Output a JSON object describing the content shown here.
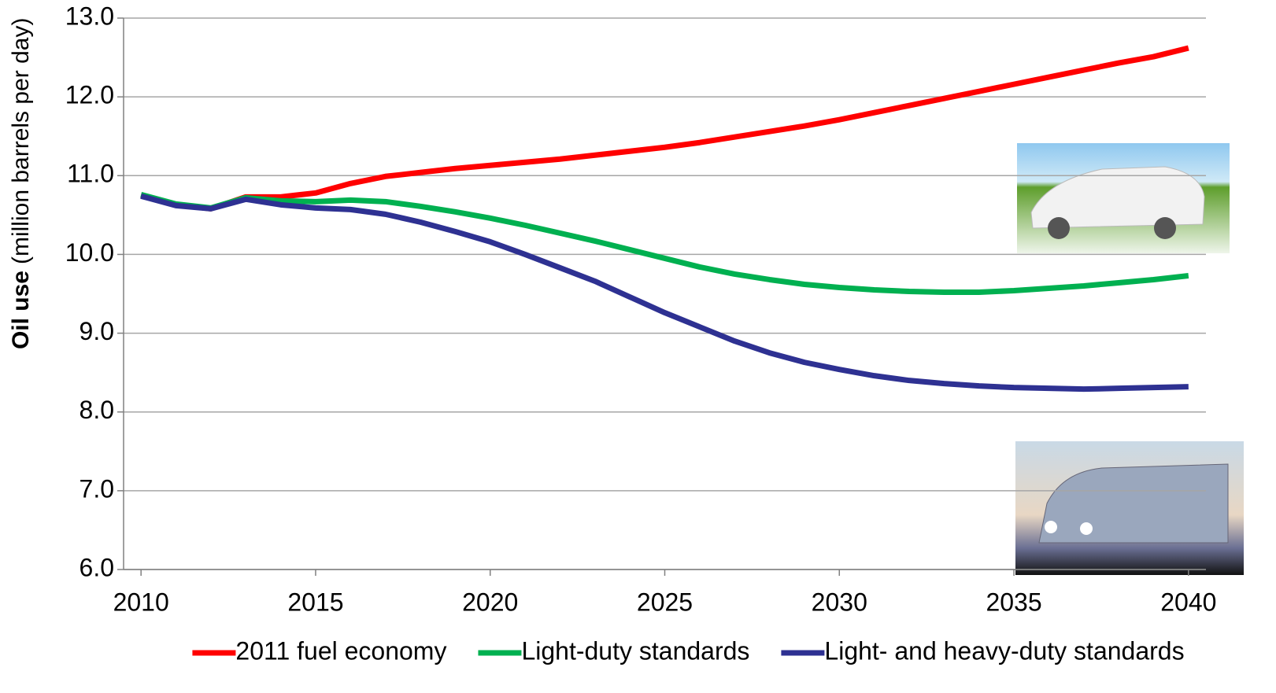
{
  "chart_data": {
    "type": "line",
    "y_label": {
      "bold": "Oil use",
      "rest": "(million barrels per day)"
    },
    "x": [
      2010,
      2011,
      2012,
      2013,
      2014,
      2015,
      2016,
      2017,
      2018,
      2019,
      2020,
      2021,
      2022,
      2023,
      2024,
      2025,
      2026,
      2027,
      2028,
      2029,
      2030,
      2031,
      2032,
      2033,
      2034,
      2035,
      2036,
      2037,
      2038,
      2039,
      2040
    ],
    "series": [
      {
        "name": "2011 fuel economy",
        "color": "#ff0000",
        "values": [
          10.75,
          10.63,
          10.58,
          10.73,
          10.73,
          10.78,
          10.9,
          10.99,
          11.04,
          11.09,
          11.13,
          11.17,
          11.21,
          11.26,
          11.31,
          11.36,
          11.42,
          11.49,
          11.56,
          11.63,
          11.71,
          11.8,
          11.89,
          11.98,
          12.07,
          12.16,
          12.25,
          12.34,
          12.43,
          12.51,
          12.62
        ]
      },
      {
        "name": "Light-duty standards",
        "color": "#00b050",
        "values": [
          10.76,
          10.64,
          10.59,
          10.72,
          10.68,
          10.67,
          10.69,
          10.67,
          10.61,
          10.54,
          10.46,
          10.37,
          10.27,
          10.17,
          10.06,
          9.95,
          9.84,
          9.75,
          9.68,
          9.62,
          9.58,
          9.55,
          9.53,
          9.52,
          9.52,
          9.54,
          9.57,
          9.6,
          9.64,
          9.68,
          9.73
        ]
      },
      {
        "name": "Light- and heavy-duty standards",
        "color": "#2e3192",
        "values": [
          10.74,
          10.62,
          10.58,
          10.7,
          10.63,
          10.59,
          10.57,
          10.51,
          10.41,
          10.29,
          10.16,
          10.0,
          9.83,
          9.66,
          9.46,
          9.26,
          9.08,
          8.9,
          8.75,
          8.63,
          8.54,
          8.46,
          8.4,
          8.36,
          8.33,
          8.31,
          8.3,
          8.29,
          8.3,
          8.31,
          8.32
        ]
      }
    ],
    "xlim": [
      2009.5,
      2040.5
    ],
    "xticks": [
      2010,
      2015,
      2020,
      2025,
      2030,
      2035,
      2040
    ],
    "ylim": [
      6,
      13
    ],
    "yticks": [
      {
        "value": 6,
        "label": "6.0"
      },
      {
        "value": 7,
        "label": "7.0"
      },
      {
        "value": 8,
        "label": "8.0"
      },
      {
        "value": 9,
        "label": "9.0"
      },
      {
        "value": 10,
        "label": "10.0"
      },
      {
        "value": 11,
        "label": "11.0"
      },
      {
        "value": 12,
        "label": "12.0"
      },
      {
        "value": 13,
        "label": "13.0"
      }
    ],
    "grid": true,
    "legend": "bottom"
  }
}
